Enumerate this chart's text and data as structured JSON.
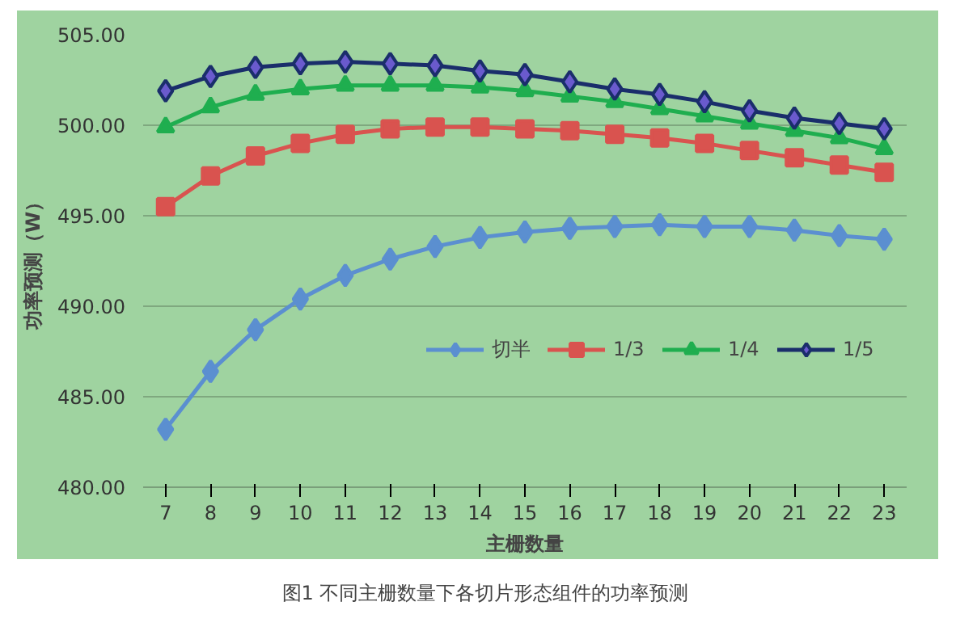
{
  "chart_data": {
    "type": "line",
    "xlabel": "主栅数量",
    "ylabel": "功率预测（W）",
    "categories": [
      "7",
      "8",
      "9",
      "10",
      "11",
      "12",
      "13",
      "14",
      "15",
      "16",
      "17",
      "18",
      "19",
      "20",
      "21",
      "22",
      "23"
    ],
    "series": [
      {
        "name": "切半",
        "color": "#5b8fd0",
        "marker": "diamond",
        "values": [
          483.2,
          486.4,
          488.7,
          490.4,
          491.7,
          492.6,
          493.3,
          493.8,
          494.1,
          494.3,
          494.4,
          494.5,
          494.4,
          494.4,
          494.2,
          493.9,
          493.7
        ]
      },
      {
        "name": "1/3",
        "color": "#d9534f",
        "marker": "square",
        "values": [
          495.5,
          497.2,
          498.3,
          499.0,
          499.5,
          499.8,
          499.9,
          499.9,
          499.8,
          499.7,
          499.5,
          499.3,
          499.0,
          498.6,
          498.2,
          497.8,
          497.4
        ]
      },
      {
        "name": "1/4",
        "color": "#1fae4f",
        "marker": "triangle",
        "values": [
          499.9,
          501.0,
          501.7,
          502.0,
          502.2,
          502.2,
          502.2,
          502.1,
          501.9,
          501.6,
          501.3,
          500.9,
          500.5,
          500.1,
          499.7,
          499.3,
          498.7
        ]
      },
      {
        "name": "1/5",
        "color": "#1a2e6b",
        "marker": "diamond",
        "values": [
          501.9,
          502.7,
          503.2,
          503.4,
          503.5,
          503.4,
          503.3,
          503.0,
          502.8,
          502.4,
          502.0,
          501.7,
          501.3,
          500.8,
          500.4,
          500.1,
          499.8
        ]
      }
    ],
    "ylim": [
      480,
      505
    ],
    "yticks": [
      {
        "value": 480,
        "label": "480.00"
      },
      {
        "value": 485,
        "label": "485.00"
      },
      {
        "value": 490,
        "label": "490.00"
      },
      {
        "value": 495,
        "label": "495.00"
      },
      {
        "value": 500,
        "label": "500.00"
      },
      {
        "value": 505,
        "label": "505.00"
      }
    ],
    "grid": "y",
    "legend": "center",
    "line_style": "solid",
    "annotations": [
      "图1 不同主栅数量下各切片形态组件的功率预测"
    ]
  }
}
